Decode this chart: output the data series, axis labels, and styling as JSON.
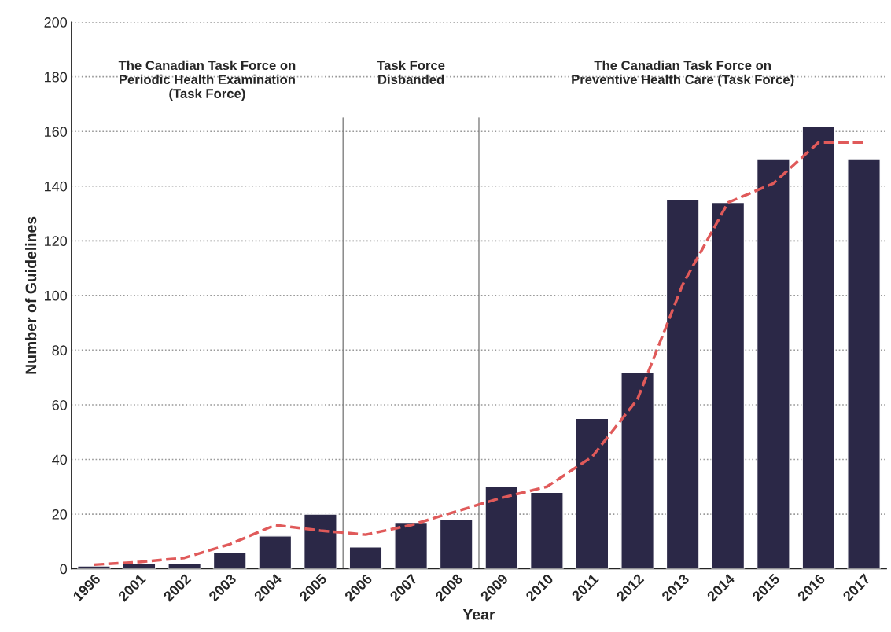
{
  "chart_data": {
    "type": "bar",
    "xlabel": "Year",
    "ylabel": "Number of Guidelines",
    "categories": [
      "1996",
      "2001",
      "2002",
      "2003",
      "2004",
      "2005",
      "2006",
      "2007",
      "2008",
      "2009",
      "2010",
      "2011",
      "2012",
      "2013",
      "2014",
      "2015",
      "2016",
      "2017"
    ],
    "series": [
      {
        "type": "bar",
        "color": "#2b2847",
        "values": [
          1,
          2,
          2,
          6,
          12,
          20,
          8,
          17,
          18,
          30,
          28,
          55,
          72,
          135,
          134,
          150,
          162,
          150
        ]
      },
      {
        "type": "line",
        "color": "#e05a5a",
        "line_style": "dashed",
        "values": [
          1.5,
          2.5,
          4,
          9,
          16,
          14,
          12.5,
          16,
          21,
          26,
          30,
          41,
          62,
          104,
          134,
          141,
          156,
          156
        ]
      }
    ],
    "ylim": [
      0,
      200
    ],
    "yticks": [
      0,
      20,
      40,
      60,
      80,
      100,
      120,
      140,
      160,
      180,
      200
    ],
    "grid": "y",
    "legend": false,
    "ref_lines": [
      {
        "axis": "x",
        "value": "2006",
        "color": "#808080"
      },
      {
        "axis": "x",
        "value": "2009",
        "color": "#808080"
      }
    ],
    "annotations": [
      "The Canadian Task Force on\nPeriodic Health Examination\n(Task Force)",
      "Task Force\nDisbanded",
      "The Canadian Task Force on\nPreventive Health Care (Task Force)"
    ]
  }
}
